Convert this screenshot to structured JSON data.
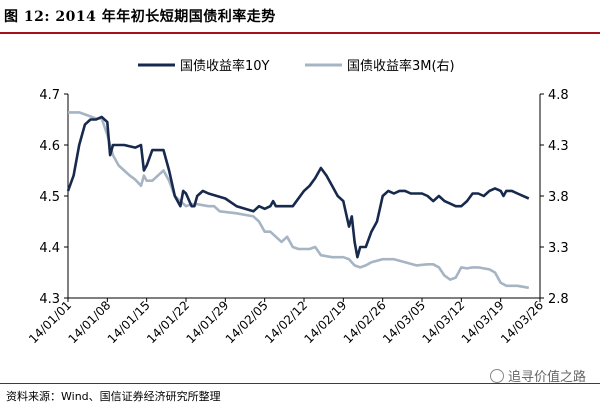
{
  "header": {
    "title": "图  12:  2014 年年初长短期国债利率走势"
  },
  "footer": {
    "source": "资料来源：Wind、国信证券经济研究所整理"
  },
  "watermark": {
    "text": "追寻价值之路"
  },
  "colors": {
    "series_10y": "#17294d",
    "series_3m": "#a6b4c4",
    "title_rule": "#a30f1a"
  },
  "chart_data": {
    "type": "line",
    "title": "",
    "x_ticks": [
      "14/01/01",
      "14/01/08",
      "14/01/15",
      "14/01/22",
      "14/01/29",
      "14/02/05",
      "14/02/12",
      "14/02/19",
      "14/02/26",
      "14/03/05",
      "14/03/12",
      "14/03/19",
      "14/03/26"
    ],
    "left_axis": {
      "min": 4.3,
      "max": 4.7,
      "ticks": [
        "4.3",
        "4.4",
        "4.5",
        "4.6",
        "4.7"
      ]
    },
    "right_axis": {
      "min": 2.8,
      "max": 4.8,
      "ticks": [
        "2.8",
        "3.3",
        "3.8",
        "4.3",
        "4.8"
      ]
    },
    "legend": {
      "position": "top"
    },
    "series": [
      {
        "name": "国债收益率10Y",
        "axis": "left",
        "points": [
          [
            0,
            4.51
          ],
          [
            1,
            4.54
          ],
          [
            2,
            4.6
          ],
          [
            3,
            4.64
          ],
          [
            4,
            4.65
          ],
          [
            5,
            4.65
          ],
          [
            6,
            4.655
          ],
          [
            7,
            4.645
          ],
          [
            7.5,
            4.58
          ],
          [
            8,
            4.6
          ],
          [
            10,
            4.6
          ],
          [
            12,
            4.595
          ],
          [
            13,
            4.6
          ],
          [
            13.5,
            4.55
          ],
          [
            14,
            4.56
          ],
          [
            15,
            4.59
          ],
          [
            17,
            4.59
          ],
          [
            18,
            4.55
          ],
          [
            19,
            4.5
          ],
          [
            20,
            4.48
          ],
          [
            20.5,
            4.51
          ],
          [
            21,
            4.505
          ],
          [
            22,
            4.48
          ],
          [
            22.5,
            4.48
          ],
          [
            23,
            4.5
          ],
          [
            24,
            4.51
          ],
          [
            25,
            4.505
          ],
          [
            28,
            4.495
          ],
          [
            30,
            4.48
          ],
          [
            33,
            4.47
          ],
          [
            34,
            4.48
          ],
          [
            35,
            4.475
          ],
          [
            36,
            4.48
          ],
          [
            36.5,
            4.49
          ],
          [
            37,
            4.48
          ],
          [
            38,
            4.48
          ],
          [
            40,
            4.48
          ],
          [
            42,
            4.51
          ],
          [
            43,
            4.52
          ],
          [
            44,
            4.535
          ],
          [
            45,
            4.555
          ],
          [
            46,
            4.54
          ],
          [
            47,
            4.52
          ],
          [
            48,
            4.5
          ],
          [
            49,
            4.49
          ],
          [
            50,
            4.44
          ],
          [
            50.5,
            4.46
          ],
          [
            51,
            4.41
          ],
          [
            51.5,
            4.38
          ],
          [
            52,
            4.4
          ],
          [
            53,
            4.4
          ],
          [
            54,
            4.43
          ],
          [
            55,
            4.45
          ],
          [
            56,
            4.5
          ],
          [
            57,
            4.51
          ],
          [
            58,
            4.505
          ],
          [
            59,
            4.51
          ],
          [
            60,
            4.51
          ],
          [
            61,
            4.505
          ],
          [
            62,
            4.505
          ],
          [
            63,
            4.505
          ],
          [
            64,
            4.5
          ],
          [
            65,
            4.49
          ],
          [
            66,
            4.5
          ],
          [
            67,
            4.49
          ],
          [
            68,
            4.485
          ],
          [
            69,
            4.48
          ],
          [
            70,
            4.48
          ],
          [
            71,
            4.49
          ],
          [
            72,
            4.505
          ],
          [
            73,
            4.505
          ],
          [
            74,
            4.5
          ],
          [
            75,
            4.51
          ],
          [
            76,
            4.515
          ],
          [
            77,
            4.51
          ],
          [
            77.5,
            4.5
          ],
          [
            78,
            4.51
          ],
          [
            79,
            4.51
          ],
          [
            80,
            4.505
          ],
          [
            82,
            4.495
          ]
        ]
      },
      {
        "name": "国债收益率3M(右)",
        "axis": "right",
        "points": [
          [
            0,
            4.62
          ],
          [
            2,
            4.62
          ],
          [
            3,
            4.6
          ],
          [
            5,
            4.56
          ],
          [
            6,
            4.56
          ],
          [
            7,
            4.4
          ],
          [
            8,
            4.2
          ],
          [
            9,
            4.1
          ],
          [
            10,
            4.05
          ],
          [
            11,
            4.0
          ],
          [
            12,
            3.96
          ],
          [
            13,
            3.9
          ],
          [
            13.5,
            4.0
          ],
          [
            14,
            3.95
          ],
          [
            15,
            3.95
          ],
          [
            16,
            4.0
          ],
          [
            17,
            4.05
          ],
          [
            18,
            3.95
          ],
          [
            19,
            3.8
          ],
          [
            20,
            3.75
          ],
          [
            21,
            3.7
          ],
          [
            22,
            3.72
          ],
          [
            23,
            3.72
          ],
          [
            25,
            3.7
          ],
          [
            26,
            3.7
          ],
          [
            27,
            3.65
          ],
          [
            30,
            3.63
          ],
          [
            33,
            3.6
          ],
          [
            34,
            3.55
          ],
          [
            35,
            3.45
          ],
          [
            36,
            3.45
          ],
          [
            37,
            3.4
          ],
          [
            38,
            3.35
          ],
          [
            39,
            3.4
          ],
          [
            40,
            3.3
          ],
          [
            41,
            3.28
          ],
          [
            43,
            3.28
          ],
          [
            44,
            3.3
          ],
          [
            45,
            3.22
          ],
          [
            47,
            3.2
          ],
          [
            49,
            3.2
          ],
          [
            50,
            3.18
          ],
          [
            51,
            3.12
          ],
          [
            52,
            3.1
          ],
          [
            53,
            3.12
          ],
          [
            54,
            3.15
          ],
          [
            56,
            3.18
          ],
          [
            58,
            3.18
          ],
          [
            60,
            3.15
          ],
          [
            62,
            3.12
          ],
          [
            64,
            3.13
          ],
          [
            65,
            3.13
          ],
          [
            66,
            3.1
          ],
          [
            67,
            3.02
          ],
          [
            68,
            2.98
          ],
          [
            69,
            3.0
          ],
          [
            70,
            3.1
          ],
          [
            71,
            3.09
          ],
          [
            72,
            3.1
          ],
          [
            73,
            3.1
          ],
          [
            75,
            3.08
          ],
          [
            76,
            3.05
          ],
          [
            77,
            2.95
          ],
          [
            78,
            2.92
          ],
          [
            79,
            2.92
          ],
          [
            80,
            2.92
          ],
          [
            82,
            2.9
          ]
        ]
      }
    ],
    "x_range": [
      0,
      82
    ],
    "x_tick_positions": [
      0,
      7,
      14,
      21,
      28,
      35,
      42,
      49,
      56,
      63,
      70,
      77,
      84
    ]
  }
}
